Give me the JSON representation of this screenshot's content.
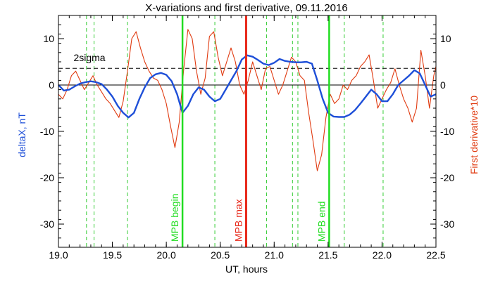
{
  "chart_data": {
    "type": "line",
    "title": "X-variations and first derivative, 09.11.2016",
    "xlabel": "UT, hours",
    "ylabel_left": "deltaX, nT",
    "ylabel_right": "First derivative*10",
    "xlim": [
      19.0,
      22.5
    ],
    "ylim": [
      -35,
      15
    ],
    "x_ticks": [
      "19.0",
      "19.5",
      "20.0",
      "20.5",
      "21.0",
      "21.5",
      "22.0",
      "22.5"
    ],
    "y_ticks": [
      "10",
      "0",
      "-10",
      "-20",
      "-30"
    ],
    "colors": {
      "deltaX": "#1e4fd8",
      "derivative": "#e03a10",
      "mpb_max": "#e8281a",
      "mpb_edges": "#22dd22",
      "green_dashed": "#33cc33"
    },
    "threshold": {
      "label": "2sigma",
      "value": 3.6
    },
    "zero_line": 0,
    "green_dashed_x": [
      19.26,
      19.33,
      19.64,
      20.45,
      20.93,
      21.17,
      21.22,
      21.65,
      22.01
    ],
    "markers": [
      {
        "label": "MPB begin",
        "x": 20.15,
        "kind": "edge"
      },
      {
        "label": "MPB max",
        "x": 20.74,
        "kind": "max"
      },
      {
        "label": "MPB end",
        "x": 21.51,
        "kind": "edge"
      }
    ],
    "series": [
      {
        "name": "deltaX",
        "x": [
          19.0,
          19.05,
          19.1,
          19.15,
          19.2,
          19.25,
          19.3,
          19.35,
          19.4,
          19.45,
          19.5,
          19.55,
          19.6,
          19.65,
          19.7,
          19.75,
          19.8,
          19.85,
          19.9,
          19.95,
          20.0,
          20.05,
          20.1,
          20.15,
          20.2,
          20.25,
          20.3,
          20.35,
          20.4,
          20.45,
          20.5,
          20.55,
          20.6,
          20.65,
          20.7,
          20.75,
          20.8,
          20.85,
          20.9,
          20.95,
          21.0,
          21.05,
          21.1,
          21.15,
          21.2,
          21.25,
          21.3,
          21.35,
          21.4,
          21.45,
          21.5,
          21.55,
          21.6,
          21.65,
          21.7,
          21.75,
          21.8,
          21.85,
          21.9,
          21.95,
          22.0,
          22.05,
          22.1,
          22.15,
          22.2,
          22.25,
          22.3,
          22.35,
          22.4,
          22.45,
          22.5
        ],
        "y": [
          0.0,
          -1.2,
          -1.0,
          -0.3,
          0.3,
          0.6,
          0.8,
          0.6,
          0.2,
          -1.0,
          -2.5,
          -4.5,
          -6.0,
          -7.0,
          -6.0,
          -3.0,
          -0.5,
          1.5,
          2.3,
          2.6,
          2.2,
          0.8,
          -2.0,
          -6.0,
          -4.5,
          -2.0,
          -0.5,
          -1.0,
          -2.5,
          -3.5,
          -3.0,
          -1.0,
          1.0,
          3.0,
          5.5,
          6.4,
          6.1,
          5.4,
          4.6,
          4.3,
          4.8,
          5.6,
          5.2,
          5.0,
          4.9,
          4.9,
          5.0,
          4.6,
          1.0,
          -3.0,
          -6.0,
          -6.8,
          -6.9,
          -6.9,
          -6.4,
          -5.4,
          -4.0,
          -2.5,
          -1.0,
          -2.0,
          -3.5,
          -3.5,
          -2.0,
          0.0,
          1.0,
          2.0,
          3.2,
          2.5,
          0.0,
          -2.5,
          -2.0
        ]
      },
      {
        "name": "First derivative*10",
        "x": [
          19.0,
          19.04,
          19.08,
          19.12,
          19.16,
          19.2,
          19.24,
          19.28,
          19.32,
          19.36,
          19.4,
          19.44,
          19.48,
          19.52,
          19.56,
          19.6,
          19.64,
          19.68,
          19.72,
          19.76,
          19.8,
          19.84,
          19.88,
          19.92,
          19.96,
          20.0,
          20.04,
          20.08,
          20.12,
          20.16,
          20.2,
          20.24,
          20.28,
          20.32,
          20.36,
          20.4,
          20.44,
          20.48,
          20.52,
          20.56,
          20.6,
          20.64,
          20.68,
          20.72,
          20.76,
          20.8,
          20.84,
          20.88,
          20.92,
          20.96,
          21.0,
          21.04,
          21.08,
          21.12,
          21.16,
          21.2,
          21.24,
          21.28,
          21.32,
          21.36,
          21.4,
          21.44,
          21.48,
          21.52,
          21.56,
          21.6,
          21.64,
          21.68,
          21.72,
          21.76,
          21.8,
          21.84,
          21.88,
          21.92,
          21.96,
          22.0,
          22.04,
          22.08,
          22.12,
          22.16,
          22.2,
          22.24,
          22.28,
          22.32,
          22.36,
          22.4,
          22.44,
          22.48,
          22.5
        ],
        "y": [
          -2.0,
          -3.0,
          -1.0,
          2.0,
          3.0,
          1.0,
          -1.0,
          0.5,
          2.0,
          0.0,
          -1.5,
          -3.0,
          -4.0,
          -5.5,
          -7.0,
          -3.5,
          3.0,
          10.0,
          11.5,
          8.0,
          5.0,
          3.0,
          1.5,
          1.0,
          -1.0,
          -4.0,
          -9.0,
          -13.5,
          -8.0,
          3.0,
          12.0,
          10.0,
          3.0,
          -2.0,
          1.5,
          10.5,
          11.5,
          6.0,
          2.0,
          5.0,
          8.0,
          5.0,
          0.0,
          -2.0,
          1.0,
          5.0,
          2.0,
          -1.0,
          3.5,
          4.0,
          1.0,
          -2.0,
          0.0,
          3.0,
          6.0,
          5.0,
          2.0,
          1.0,
          -6.0,
          -12.0,
          -18.5,
          -15.0,
          -7.0,
          -2.0,
          -4.0,
          -3.0,
          0.0,
          -1.0,
          1.0,
          2.0,
          4.0,
          5.0,
          6.5,
          1.0,
          -5.0,
          -3.0,
          -1.0,
          0.5,
          3.5,
          0.0,
          -3.0,
          -5.0,
          -8.0,
          -5.0,
          7.5,
          2.0,
          -5.0,
          2.0,
          4.0
        ]
      }
    ]
  }
}
